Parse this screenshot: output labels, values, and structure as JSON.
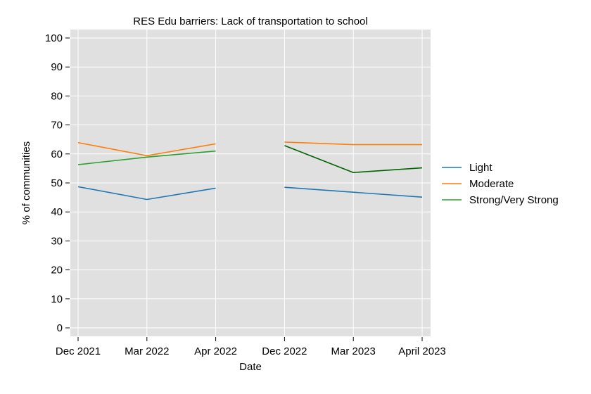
{
  "chart_data": {
    "type": "line",
    "title": "RES Edu barriers: Lack of transportation to school",
    "xlabel": "Date",
    "ylabel": "% of communities",
    "ylim": [
      0,
      100
    ],
    "yticks": [
      0,
      10,
      20,
      30,
      40,
      50,
      60,
      70,
      80,
      90,
      100
    ],
    "categories": [
      "Dec 2021",
      "Mar 2022",
      "Apr 2022",
      "Dec 2022",
      "Mar 2023",
      "April 2023"
    ],
    "grid": true,
    "legend_position": "right",
    "series": [
      {
        "name": "Light",
        "color": "#1f77b4",
        "segments": [
          {
            "start": 0,
            "values": [
              48.7,
              44.3,
              48.2
            ]
          },
          {
            "start": 3,
            "values": [
              48.5,
              46.8,
              45.1
            ]
          }
        ]
      },
      {
        "name": "Moderate",
        "color": "#ff7f0e",
        "segments": [
          {
            "start": 0,
            "values": [
              63.9,
              59.4,
              63.5
            ]
          },
          {
            "start": 3,
            "values": [
              64.1,
              63.2,
              63.2
            ]
          }
        ]
      },
      {
        "name": "Strong/Very Strong",
        "color": "#2ca02c",
        "segments": [
          {
            "start": 0,
            "values": [
              56.3,
              58.9,
              61.0
            ],
            "color": "#2ca02c"
          },
          {
            "start": 3,
            "values": [
              62.9,
              53.6,
              55.2
            ],
            "color": "#006400"
          }
        ]
      }
    ]
  }
}
